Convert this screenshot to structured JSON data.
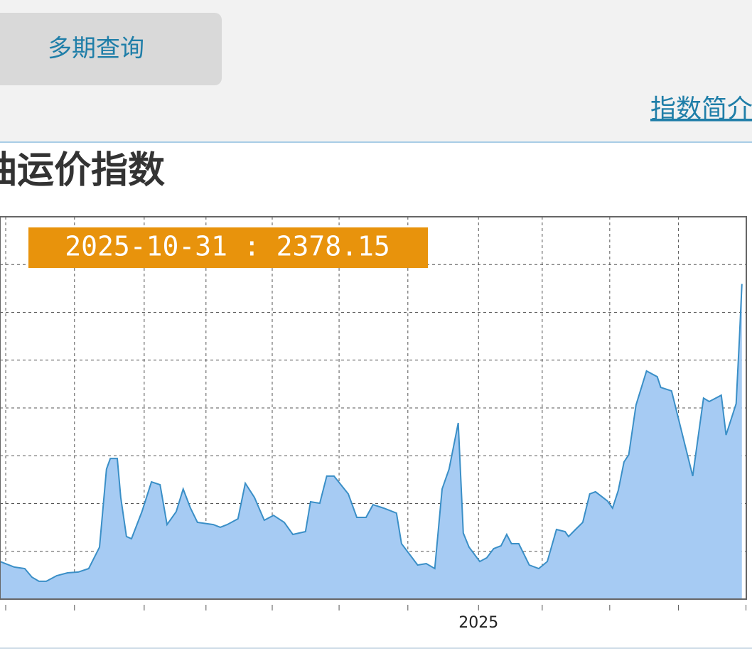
{
  "toolbar": {
    "button": "多期查询",
    "link": "指数简介"
  },
  "chart_data": {
    "type": "area",
    "title": "油运价指数",
    "tooltip": "2025-10-31 : 2378.15",
    "color": "#a6cbf3",
    "line_color": "#3a8fc7",
    "grid": true,
    "x": [
      2023.49,
      2023.535,
      2023.568,
      2023.591,
      2023.613,
      2023.636,
      2023.669,
      2023.703,
      2023.737,
      2023.77,
      2023.804,
      2023.826,
      2023.838,
      2023.86,
      2023.871,
      2023.889,
      2023.905,
      2023.938,
      2023.968,
      2023.995,
      2024.017,
      2024.046,
      2024.068,
      2024.091,
      2024.113,
      2024.163,
      2024.185,
      2024.207,
      2024.241,
      2024.264,
      2024.293,
      2024.324,
      2024.353,
      2024.387,
      2024.414,
      2024.454,
      2024.47,
      2024.499,
      2024.521,
      2024.544,
      2024.589,
      2024.616,
      2024.645,
      2024.667,
      2024.701,
      2024.741,
      2024.757,
      2024.808,
      2024.835,
      2024.862,
      2024.885,
      2024.907,
      2024.936,
      2024.952,
      2024.97,
      2025.004,
      2025.026,
      2025.048,
      2025.071,
      2025.089,
      2025.104,
      2025.127,
      2025.16,
      2025.19,
      2025.217,
      2025.246,
      2025.273,
      2025.284,
      2025.306,
      2025.329,
      2025.351,
      2025.369,
      2025.407,
      2025.423,
      2025.441,
      2025.459,
      2025.474,
      2025.497,
      2025.53,
      2025.564,
      2025.575,
      2025.609,
      2025.676,
      2025.71,
      2025.728,
      2025.766,
      2025.781,
      2025.813,
      2025.824,
      2025.831
    ],
    "values": [
      636,
      601,
      592,
      538,
      512,
      512,
      547,
      565,
      570,
      592,
      726,
      1216,
      1283,
      1283,
      1038,
      793,
      779,
      949,
      1136,
      1118,
      868,
      949,
      1091,
      971,
      882,
      868,
      851,
      868,
      904,
      1127,
      1038,
      895,
      926,
      882,
      806,
      824,
      1011,
      1002,
      1172,
      1172,
      1060,
      913,
      913,
      993,
      971,
      940,
      748,
      614,
      623,
      592,
      1091,
      1216,
      1506,
      815,
      726,
      636,
      659,
      717,
      735,
      806,
      748,
      748,
      614,
      592,
      636,
      837,
      824,
      793,
      837,
      882,
      1060,
      1074,
      1016,
      971,
      1083,
      1261,
      1306,
      1618,
      1832,
      1796,
      1729,
      1707,
      1172,
      1662,
      1640,
      1680,
      1430,
      1627,
      2064,
      2378.15
    ],
    "xlim": [
      2023.49,
      2025.845
    ],
    "ylim": [
      400,
      2800
    ],
    "xticks": [
      {
        "value": 2025,
        "label": "2025"
      }
    ],
    "x_minor_ticks": [
      2023.508,
      2023.725,
      2023.945,
      2024.14,
      2024.349,
      2024.56,
      2024.777,
      2025.201,
      2025.414,
      2025.631,
      2025.844
    ],
    "yticks": [
      400,
      700,
      1000,
      1300,
      1600,
      1900,
      2200,
      2500,
      2800
    ]
  }
}
